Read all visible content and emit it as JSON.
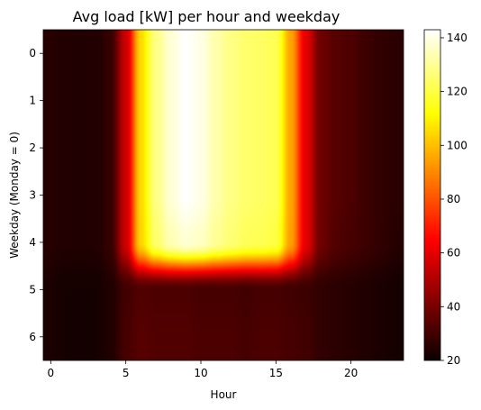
{
  "chart_data": {
    "type": "heatmap",
    "title": "Avg load [kW] per hour and weekday",
    "xlabel": "Hour",
    "ylabel": "Weekday (Monday = 0)",
    "colormap": "hot",
    "interpolation": "bicubic",
    "x_ticks": [
      0,
      5,
      10,
      15,
      20
    ],
    "y_ticks": [
      0,
      1,
      2,
      3,
      4,
      5,
      6
    ],
    "xlim": [
      -0.5,
      23.5
    ],
    "ylim": [
      6.5,
      -0.5
    ],
    "colorbar": {
      "ticks": [
        20,
        40,
        60,
        80,
        100,
        120,
        140
      ],
      "range": [
        20,
        143
      ]
    },
    "hours": [
      0,
      1,
      2,
      3,
      4,
      5,
      6,
      7,
      8,
      9,
      10,
      11,
      12,
      13,
      14,
      15,
      16,
      17,
      18,
      19,
      20,
      21,
      22,
      23
    ],
    "weekdays": [
      0,
      1,
      2,
      3,
      4,
      5,
      6
    ],
    "values": [
      [
        25,
        24,
        24,
        24,
        28,
        55,
        105,
        128,
        138,
        143,
        140,
        133,
        128,
        125,
        124,
        122,
        95,
        60,
        38,
        34,
        32,
        29,
        27,
        26
      ],
      [
        25,
        24,
        24,
        24,
        28,
        55,
        105,
        128,
        138,
        143,
        140,
        133,
        128,
        125,
        124,
        122,
        95,
        60,
        38,
        34,
        32,
        29,
        27,
        26
      ],
      [
        25,
        24,
        24,
        24,
        28,
        55,
        105,
        128,
        138,
        143,
        140,
        133,
        128,
        125,
        124,
        122,
        95,
        60,
        38,
        34,
        32,
        29,
        27,
        26
      ],
      [
        25,
        24,
        24,
        24,
        28,
        55,
        105,
        128,
        138,
        143,
        140,
        133,
        128,
        125,
        124,
        122,
        95,
        60,
        38,
        34,
        32,
        29,
        27,
        26
      ],
      [
        25,
        24,
        24,
        24,
        28,
        55,
        104,
        125,
        134,
        138,
        136,
        130,
        126,
        123,
        122,
        120,
        94,
        60,
        38,
        33,
        31,
        29,
        27,
        25
      ],
      [
        23,
        22,
        22,
        22,
        24,
        30,
        33,
        32,
        32,
        32,
        31,
        31,
        31,
        30,
        31,
        31,
        30,
        29,
        27,
        26,
        25,
        24,
        23,
        22
      ],
      [
        23,
        22,
        22,
        22,
        24,
        31,
        34,
        33,
        33,
        33,
        32,
        32,
        32,
        31,
        32,
        32,
        31,
        30,
        27,
        26,
        25,
        24,
        23,
        22
      ]
    ]
  }
}
